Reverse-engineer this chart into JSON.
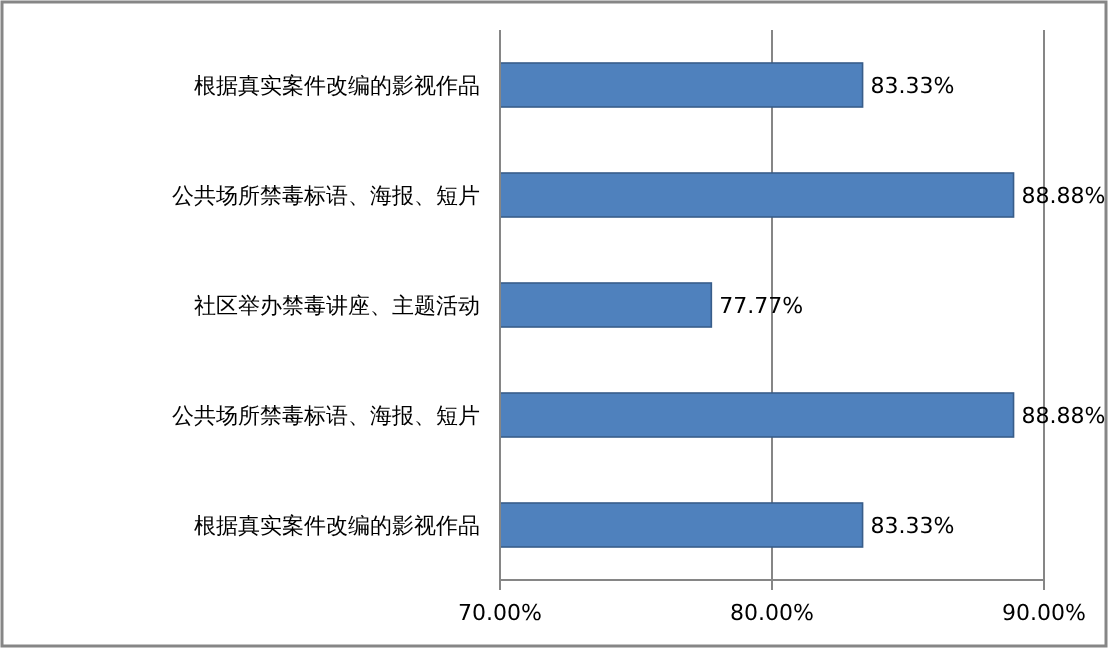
{
  "chart_data": {
    "type": "bar",
    "orientation": "horizontal",
    "categories": [
      "根据真实案件改编的影视作品",
      "公共场所禁毒标语、海报、短片",
      "社区举办禁毒讲座、主题活动",
      "公共场所禁毒标语、海报、短片",
      "根据真实案件改编的影视作品"
    ],
    "values": [
      83.33,
      88.88,
      77.77,
      88.88,
      83.33
    ],
    "value_labels": [
      "83.33%",
      "88.88%",
      "77.77%",
      "88.88%",
      "83.33%"
    ],
    "color": "#4f81bd",
    "xlim": [
      70,
      90
    ],
    "xticks": [
      {
        "value": 70,
        "label": "70.00%"
      },
      {
        "value": 80,
        "label": "80.00%"
      },
      {
        "value": 90,
        "label": "90.00%"
      }
    ],
    "grid": "x"
  }
}
